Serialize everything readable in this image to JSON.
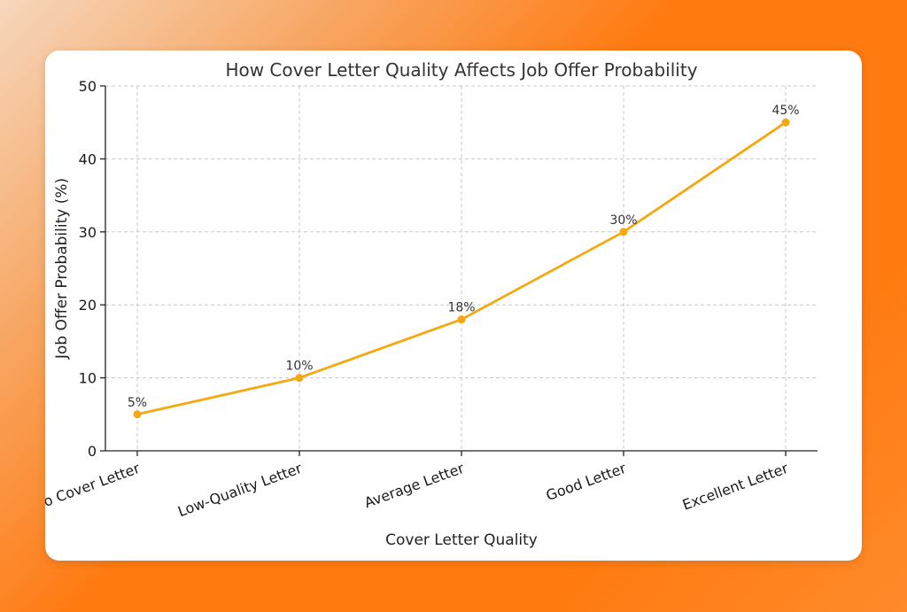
{
  "chart_data": {
    "type": "line",
    "title": "How Cover Letter Quality Affects Job Offer Probability",
    "xlabel": "Cover Letter Quality",
    "ylabel": "Job Offer Probability (%)",
    "categories": [
      "No Cover Letter",
      "Low-Quality Letter",
      "Average Letter",
      "Good Letter",
      "Excellent Letter"
    ],
    "series": [
      {
        "values": [
          5,
          10,
          18,
          30,
          45
        ],
        "data_labels": [
          "5%",
          "10%",
          "18%",
          "30%",
          "45%"
        ],
        "color": "#f5a80f",
        "marker": "circle"
      }
    ],
    "ylim": [
      0,
      50
    ],
    "yticks": [
      0,
      10,
      20,
      30,
      40,
      50
    ],
    "grid": true
  },
  "colors": {
    "line": "#f5a80f",
    "background_accent": "#ff7a10"
  }
}
